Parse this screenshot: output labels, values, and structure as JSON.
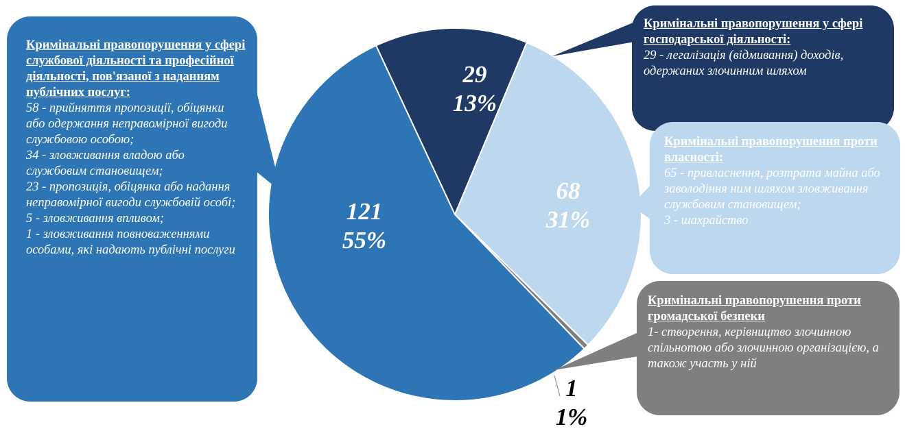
{
  "chart_data": {
    "type": "pie",
    "slices": [
      {
        "value": 29,
        "percent": "13%",
        "color": "#1f3864",
        "callout_color": "#1f3864",
        "callout_text_color": "#ffffff",
        "title": "Кримінальні правопорушення у сфері господарської діяльності:",
        "lines": [
          "29 - легалізація (відмивання) доходів, одержаних злочинним шляхом"
        ]
      },
      {
        "value": 68,
        "percent": "31%",
        "color": "#bdd7ee",
        "callout_color": "#bdd7ee",
        "callout_text_color": "#ffffff",
        "title": "Кримінальні правопорушення проти власності:",
        "lines": [
          "65 - привласнення, розтрата майна або заволодіння ним шляхом зловживання службовим становищем;",
          "3 - шахрайство"
        ]
      },
      {
        "value": 1,
        "percent": "1%",
        "color": "#7f7f7f",
        "callout_color": "#7f7f7f",
        "callout_text_color": "#ffffff",
        "title": "Кримінальні правопорушення проти громадської безпеки",
        "lines": [
          "1- створення, керівництво злочинною спільнотою або злочинною організацією, а також участь у ній"
        ]
      },
      {
        "value": 121,
        "percent": "55%",
        "color": "#2e75b6",
        "callout_color": "#2e75b6",
        "callout_text_color": "#ffffff",
        "title": "Кримінальні правопорушення  у сфері службової діяльності та професійної діяльності, пов'язаної з наданням публічних послуг:",
        "lines": [
          "58 - прийняття пропозиції, обіцянки або одержання неправомірної вигоди службовою особою;",
          "34 - зловживання владою або службовим становищем;",
          "23 - пропозиція, обіцянка або надання неправомірної вигоди службовій особі;",
          "5 - зловживання впливом;",
          "1 - зловживання повноваженнями особами, які надають публічні послуги"
        ]
      }
    ]
  }
}
